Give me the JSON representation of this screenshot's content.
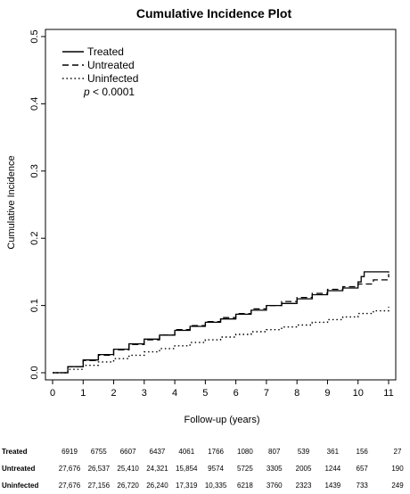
{
  "chart_data": {
    "type": "line",
    "title": "Cumulative Incidence Plot",
    "xlabel": "Follow-up (years)",
    "ylabel": "Cumulative Incidence",
    "xlim": [
      0,
      11
    ],
    "ylim": [
      0,
      0.5
    ],
    "x_ticks": [
      "0",
      "1",
      "2",
      "3",
      "4",
      "5",
      "6",
      "7",
      "8",
      "9",
      "10",
      "11"
    ],
    "y_ticks": [
      "0.0",
      "0.1",
      "0.2",
      "0.3",
      "0.4",
      "0.5"
    ],
    "legend_position": "top-left",
    "annotation_p": "p",
    "annotation_rest": " < 0.0001",
    "grid": false,
    "series": [
      {
        "name": "Treated",
        "style": "solid",
        "points": [
          [
            0,
            0
          ],
          [
            0.5,
            0.009
          ],
          [
            1,
            0.019
          ],
          [
            1.5,
            0.027
          ],
          [
            2,
            0.035
          ],
          [
            2.5,
            0.043
          ],
          [
            3,
            0.05
          ],
          [
            3.5,
            0.056
          ],
          [
            4,
            0.063
          ],
          [
            4.5,
            0.069
          ],
          [
            5,
            0.075
          ],
          [
            5.5,
            0.08
          ],
          [
            6,
            0.087
          ],
          [
            6.5,
            0.093
          ],
          [
            7,
            0.1
          ],
          [
            7.5,
            0.103
          ],
          [
            8,
            0.11
          ],
          [
            8.5,
            0.116
          ],
          [
            9,
            0.122
          ],
          [
            9.5,
            0.126
          ],
          [
            10,
            0.135
          ],
          [
            10.1,
            0.143
          ],
          [
            10.2,
            0.15
          ],
          [
            10.5,
            0.15
          ],
          [
            11,
            0.149
          ]
        ]
      },
      {
        "name": "Untreated",
        "style": "dashed",
        "points": [
          [
            0,
            0
          ],
          [
            0.5,
            0.009
          ],
          [
            1,
            0.018
          ],
          [
            1.5,
            0.026
          ],
          [
            2,
            0.034
          ],
          [
            2.5,
            0.042
          ],
          [
            3,
            0.049
          ],
          [
            3.5,
            0.056
          ],
          [
            4,
            0.064
          ],
          [
            4.5,
            0.07
          ],
          [
            5,
            0.076
          ],
          [
            5.5,
            0.082
          ],
          [
            6,
            0.088
          ],
          [
            6.5,
            0.095
          ],
          [
            7,
            0.1
          ],
          [
            7.5,
            0.106
          ],
          [
            8,
            0.112
          ],
          [
            8.5,
            0.118
          ],
          [
            9,
            0.124
          ],
          [
            9.5,
            0.128
          ],
          [
            10,
            0.132
          ],
          [
            10.5,
            0.138
          ],
          [
            11,
            0.147
          ]
        ]
      },
      {
        "name": "Uninfected",
        "style": "dotted",
        "points": [
          [
            0,
            0
          ],
          [
            0.5,
            0.005
          ],
          [
            1,
            0.011
          ],
          [
            1.5,
            0.016
          ],
          [
            2,
            0.021
          ],
          [
            2.5,
            0.026
          ],
          [
            3,
            0.031
          ],
          [
            3.5,
            0.036
          ],
          [
            4,
            0.04
          ],
          [
            4.5,
            0.045
          ],
          [
            5,
            0.049
          ],
          [
            5.5,
            0.053
          ],
          [
            6,
            0.057
          ],
          [
            6.5,
            0.061
          ],
          [
            7,
            0.064
          ],
          [
            7.5,
            0.068
          ],
          [
            8,
            0.071
          ],
          [
            8.5,
            0.075
          ],
          [
            9,
            0.079
          ],
          [
            9.5,
            0.083
          ],
          [
            10,
            0.088
          ],
          [
            10.5,
            0.092
          ],
          [
            11,
            0.098
          ]
        ]
      }
    ]
  },
  "risk_table": {
    "times": [
      0,
      1,
      2,
      3,
      4,
      5,
      6,
      7,
      8,
      9,
      10,
      11
    ],
    "rows": [
      {
        "label": "Treated",
        "values": [
          "6919",
          "6755",
          "6607",
          "6437",
          "4061",
          "1766",
          "1080",
          "807",
          "539",
          "361",
          "156",
          "27"
        ]
      },
      {
        "label": "Untreated",
        "values": [
          "27,676",
          "26,537",
          "25,410",
          "24,321",
          "15,854",
          "9574",
          "5725",
          "3305",
          "2005",
          "1244",
          "657",
          "190"
        ]
      },
      {
        "label": "Uninfected",
        "values": [
          "27,676",
          "27,156",
          "26,720",
          "26,240",
          "17,319",
          "10,335",
          "6218",
          "3760",
          "2323",
          "1439",
          "733",
          "249"
        ]
      }
    ]
  }
}
